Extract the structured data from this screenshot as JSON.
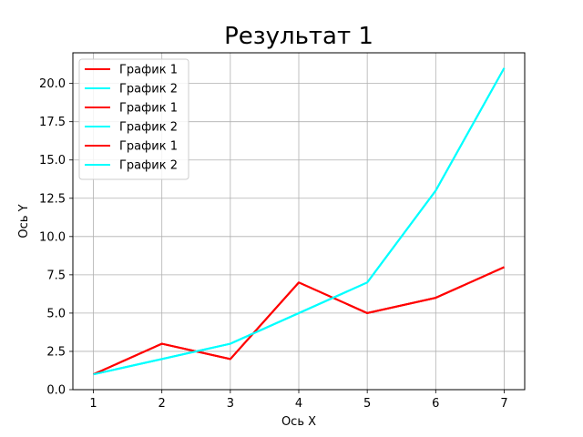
{
  "chart_data": {
    "type": "line",
    "title": "Результат 1",
    "xlabel": "Ось X",
    "ylabel": "Ось Y",
    "x": [
      1,
      2,
      3,
      4,
      5,
      6,
      7
    ],
    "xlim": [
      0.7,
      7.3
    ],
    "ylim": [
      0,
      22
    ],
    "xticks": [
      1,
      2,
      3,
      4,
      5,
      6,
      7
    ],
    "yticks": [
      0.0,
      2.5,
      5.0,
      7.5,
      10.0,
      12.5,
      15.0,
      17.5,
      20.0
    ],
    "ytick_labels": [
      "0.0",
      "2.5",
      "5.0",
      "7.5",
      "10.0",
      "12.5",
      "15.0",
      "17.5",
      "20.0"
    ],
    "grid": true,
    "legend_position": "upper-left",
    "series": [
      {
        "name": "График 1",
        "color": "#ff0000",
        "values": [
          1,
          3,
          2,
          7,
          5,
          6,
          8
        ]
      },
      {
        "name": "График 2",
        "color": "#00ffff",
        "values": [
          1,
          2,
          3,
          5,
          7,
          13,
          21
        ]
      },
      {
        "name": "График 1",
        "color": "#ff0000",
        "values": [
          1,
          3,
          2,
          7,
          5,
          6,
          8
        ]
      },
      {
        "name": "График 2",
        "color": "#00ffff",
        "values": [
          1,
          2,
          3,
          5,
          7,
          13,
          21
        ]
      },
      {
        "name": "График 1",
        "color": "#ff0000",
        "values": [
          1,
          3,
          2,
          7,
          5,
          6,
          8
        ]
      },
      {
        "name": "График 2",
        "color": "#00ffff",
        "values": [
          1,
          2,
          3,
          5,
          7,
          13,
          21
        ]
      }
    ]
  }
}
